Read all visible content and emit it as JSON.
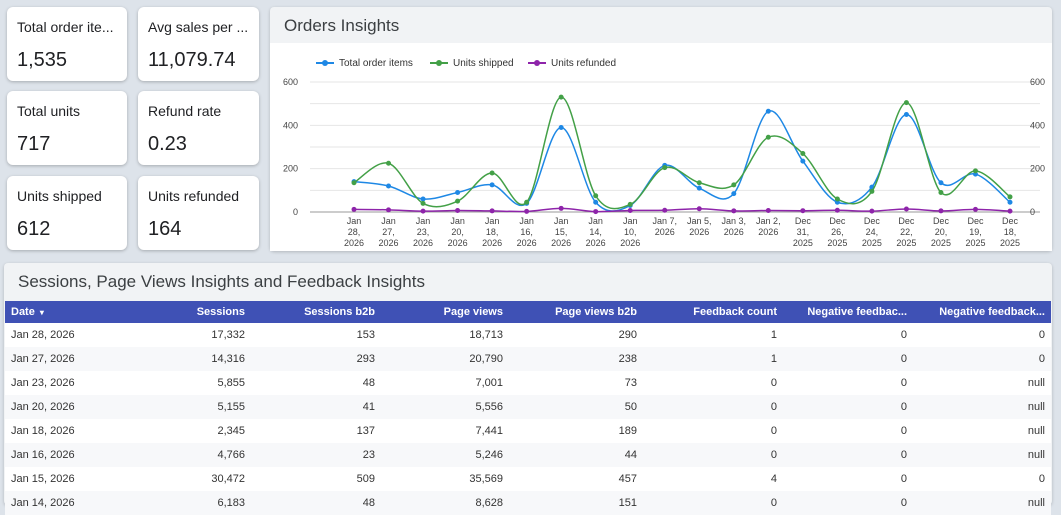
{
  "kpis": [
    {
      "label": "Total order ite...",
      "value": "1,535"
    },
    {
      "label": "Avg sales per ...",
      "value": "11,079.74"
    },
    {
      "label": "Total units",
      "value": "717"
    },
    {
      "label": "Refund rate",
      "value": "0.23"
    },
    {
      "label": "Units shipped",
      "value": "612"
    },
    {
      "label": "Units refunded",
      "value": "164"
    }
  ],
  "orders": {
    "title": "Orders Insights"
  },
  "chart_data": {
    "type": "line",
    "title": "Orders Insights",
    "categories": [
      "Jan 28, 2026",
      "Jan 27, 2026",
      "Jan 23, 2026",
      "Jan 20, 2026",
      "Jan 18, 2026",
      "Jan 16, 2026",
      "Jan 15, 2026",
      "Jan 14, 2026",
      "Jan 10, 2026",
      "Jan 7, 2026",
      "Jan 5, 2026",
      "Jan 3, 2026",
      "Jan 2, 2026",
      "Dec 31, 2025",
      "Dec 26, 2025",
      "Dec 24, 2025",
      "Dec 22, 2025",
      "Dec 20, 2025",
      "Dec 19, 2025",
      "Dec 18, 2025"
    ],
    "series": [
      {
        "name": "Total order items",
        "color": "#1e88e5",
        "values": [
          140,
          120,
          60,
          90,
          125,
          40,
          390,
          45,
          30,
          215,
          110,
          85,
          465,
          235,
          45,
          115,
          450,
          135,
          175,
          45
        ]
      },
      {
        "name": "Units shipped",
        "color": "#43a047",
        "values": [
          135,
          225,
          40,
          50,
          180,
          45,
          530,
          75,
          35,
          205,
          135,
          125,
          345,
          270,
          60,
          95,
          505,
          90,
          190,
          70
        ]
      },
      {
        "name": "Units refunded",
        "color": "#8e24aa",
        "values": [
          12,
          10,
          4,
          7,
          5,
          3,
          17,
          2,
          7,
          8,
          15,
          5,
          7,
          6,
          8,
          4,
          14,
          5,
          12,
          4
        ]
      }
    ],
    "ylim": [
      0,
      600
    ],
    "yticks": [
      0,
      200,
      400,
      600
    ],
    "grid": true,
    "legend": "top-left",
    "dual_axis": true
  },
  "sessions": {
    "title": "Sessions, Page Views Insights and Feedback Insights",
    "columns": [
      "Date",
      "Sessions",
      "Sessions b2b",
      "Page views",
      "Page views b2b",
      "Feedback count",
      "Negative feedbac...",
      "Negative feedback..."
    ],
    "sort_indicator": "▾",
    "rows": [
      [
        "Jan 28, 2026",
        "17,332",
        "153",
        "18,713",
        "290",
        "1",
        "0",
        "0"
      ],
      [
        "Jan 27, 2026",
        "14,316",
        "293",
        "20,790",
        "238",
        "1",
        "0",
        "0"
      ],
      [
        "Jan 23, 2026",
        "5,855",
        "48",
        "7,001",
        "73",
        "0",
        "0",
        "null"
      ],
      [
        "Jan 20, 2026",
        "5,155",
        "41",
        "5,556",
        "50",
        "0",
        "0",
        "null"
      ],
      [
        "Jan 18, 2026",
        "2,345",
        "137",
        "7,441",
        "189",
        "0",
        "0",
        "null"
      ],
      [
        "Jan 16, 2026",
        "4,766",
        "23",
        "5,246",
        "44",
        "0",
        "0",
        "null"
      ],
      [
        "Jan 15, 2026",
        "30,472",
        "509",
        "35,569",
        "457",
        "4",
        "0",
        "0"
      ],
      [
        "Jan 14, 2026",
        "6,183",
        "48",
        "8,628",
        "151",
        "0",
        "0",
        "null"
      ]
    ]
  }
}
